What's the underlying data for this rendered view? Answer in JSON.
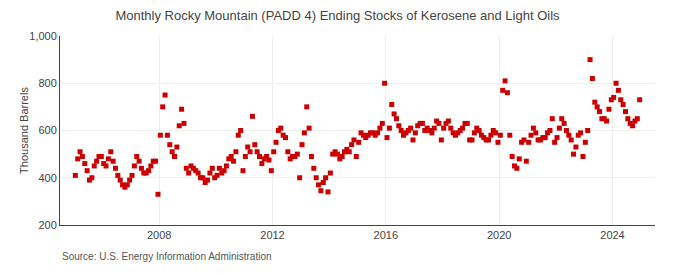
{
  "chart_data": {
    "type": "scatter",
    "title": "Monthly Rocky Mountain (PADD 4) Ending Stocks of Kerosene and Light Oils",
    "ylabel": "Thousand Barrels",
    "annotations": [
      "Source: U.S. Energy Information Administration"
    ],
    "color": "#cc0000",
    "marker": "square",
    "grid": true,
    "xlim": [
      2004.5,
      2025.5
    ],
    "xticks": [
      2008,
      2012,
      2016,
      2020,
      2024
    ],
    "ylim": [
      200,
      1000
    ],
    "yticks": [
      200,
      400,
      600,
      800,
      {
        "value": 1000,
        "label": "1,000"
      }
    ],
    "x": [
      2005.0416666666667,
      2005.125,
      2005.2083333333333,
      2005.2916666666667,
      2005.375,
      2005.4583333333333,
      2005.5416666666667,
      2005.625,
      2005.7083333333333,
      2005.7916666666667,
      2005.875,
      2005.9583333333333,
      2006.0416666666667,
      2006.125,
      2006.2083333333333,
      2006.2916666666667,
      2006.375,
      2006.4583333333333,
      2006.5416666666667,
      2006.625,
      2006.7083333333333,
      2006.7916666666667,
      2006.875,
      2006.9583333333333,
      2007.0416666666667,
      2007.125,
      2007.2083333333333,
      2007.2916666666667,
      2007.375,
      2007.4583333333333,
      2007.5416666666667,
      2007.625,
      2007.7083333333333,
      2007.7916666666667,
      2007.875,
      2007.9583333333333,
      2008.0416666666667,
      2008.125,
      2008.2083333333333,
      2008.2916666666667,
      2008.375,
      2008.4583333333333,
      2008.5416666666667,
      2008.625,
      2008.7083333333333,
      2008.7916666666667,
      2008.875,
      2008.9583333333333,
      2009.0416666666667,
      2009.125,
      2009.2083333333333,
      2009.2916666666667,
      2009.375,
      2009.4583333333333,
      2009.5416666666667,
      2009.625,
      2009.7083333333333,
      2009.7916666666667,
      2009.875,
      2009.9583333333333,
      2010.0416666666667,
      2010.125,
      2010.2083333333333,
      2010.2916666666667,
      2010.375,
      2010.4583333333333,
      2010.5416666666667,
      2010.625,
      2010.7083333333333,
      2010.7916666666667,
      2010.875,
      2010.9583333333333,
      2011.0416666666667,
      2011.125,
      2011.2083333333333,
      2011.2916666666667,
      2011.375,
      2011.4583333333333,
      2011.5416666666667,
      2011.625,
      2011.7083333333333,
      2011.7916666666667,
      2011.875,
      2011.9583333333333,
      2012.0416666666667,
      2012.125,
      2012.2083333333333,
      2012.2916666666667,
      2012.375,
      2012.4583333333333,
      2012.5416666666667,
      2012.625,
      2012.7083333333333,
      2012.7916666666667,
      2012.875,
      2012.9583333333333,
      2013.0416666666667,
      2013.125,
      2013.2083333333333,
      2013.2916666666667,
      2013.375,
      2013.4583333333333,
      2013.5416666666667,
      2013.625,
      2013.7083333333333,
      2013.7916666666667,
      2013.875,
      2013.9583333333333,
      2014.0416666666667,
      2014.125,
      2014.2083333333333,
      2014.2916666666667,
      2014.375,
      2014.4583333333333,
      2014.5416666666667,
      2014.625,
      2014.7083333333333,
      2014.7916666666667,
      2014.875,
      2014.9583333333333,
      2015.0416666666667,
      2015.125,
      2015.2083333333333,
      2015.2916666666667,
      2015.375,
      2015.4583333333333,
      2015.5416666666667,
      2015.625,
      2015.7083333333333,
      2015.7916666666667,
      2015.875,
      2015.9583333333333,
      2016.0416666666667,
      2016.125,
      2016.2083333333333,
      2016.2916666666667,
      2016.375,
      2016.4583333333333,
      2016.5416666666667,
      2016.625,
      2016.7083333333333,
      2016.7916666666667,
      2016.875,
      2016.9583333333333,
      2017.0416666666667,
      2017.125,
      2017.2083333333333,
      2017.2916666666667,
      2017.375,
      2017.4583333333333,
      2017.5416666666667,
      2017.625,
      2017.7083333333333,
      2017.7916666666667,
      2017.875,
      2017.9583333333333,
      2018.0416666666667,
      2018.125,
      2018.2083333333333,
      2018.2916666666667,
      2018.375,
      2018.4583333333333,
      2018.5416666666667,
      2018.625,
      2018.7083333333333,
      2018.7916666666667,
      2018.875,
      2018.9583333333333,
      2019.0416666666667,
      2019.125,
      2019.2083333333333,
      2019.2916666666667,
      2019.375,
      2019.4583333333333,
      2019.5416666666667,
      2019.625,
      2019.7083333333333,
      2019.7916666666667,
      2019.875,
      2019.9583333333333,
      2020.0416666666667,
      2020.125,
      2020.2083333333333,
      2020.2916666666667,
      2020.375,
      2020.4583333333333,
      2020.5416666666667,
      2020.625,
      2020.7083333333333,
      2020.7916666666667,
      2020.875,
      2020.9583333333333,
      2021.0416666666667,
      2021.125,
      2021.2083333333333,
      2021.2916666666667,
      2021.375,
      2021.4583333333333,
      2021.5416666666667,
      2021.625,
      2021.7083333333333,
      2021.7916666666667,
      2021.875,
      2021.9583333333333,
      2022.0416666666667,
      2022.125,
      2022.2083333333333,
      2022.2916666666667,
      2022.375,
      2022.4583333333333,
      2022.5416666666667,
      2022.625,
      2022.7083333333333,
      2022.7916666666667,
      2022.875,
      2022.9583333333333,
      2023.0416666666667,
      2023.125,
      2023.2083333333333,
      2023.2916666666667,
      2023.375,
      2023.4583333333333,
      2023.5416666666667,
      2023.625,
      2023.7083333333333,
      2023.7916666666667,
      2023.875,
      2023.9583333333333,
      2024.0416666666667,
      2024.125,
      2024.2083333333333,
      2024.2916666666667,
      2024.375,
      2024.4583333333333,
      2024.5416666666667,
      2024.625,
      2024.7083333333333,
      2024.7916666666667,
      2024.875,
      2024.9583333333333
    ],
    "values": [
      410,
      480,
      510,
      490,
      460,
      430,
      390,
      400,
      450,
      470,
      490,
      490,
      460,
      450,
      480,
      510,
      470,
      440,
      410,
      390,
      370,
      360,
      370,
      390,
      410,
      450,
      490,
      470,
      440,
      420,
      420,
      430,
      450,
      470,
      470,
      330,
      580,
      700,
      750,
      580,
      540,
      510,
      490,
      530,
      620,
      690,
      630,
      440,
      420,
      450,
      440,
      430,
      420,
      400,
      400,
      380,
      390,
      420,
      440,
      400,
      410,
      440,
      420,
      430,
      450,
      480,
      490,
      470,
      510,
      580,
      600,
      430,
      490,
      530,
      510,
      660,
      540,
      510,
      490,
      460,
      480,
      490,
      475,
      430,
      510,
      550,
      600,
      610,
      580,
      570,
      510,
      480,
      490,
      490,
      500,
      400,
      540,
      590,
      700,
      610,
      490,
      440,
      400,
      370,
      345,
      380,
      400,
      340,
      420,
      500,
      510,
      500,
      480,
      490,
      510,
      520,
      510,
      540,
      560,
      490,
      550,
      590,
      580,
      570,
      580,
      590,
      590,
      580,
      590,
      610,
      630,
      800,
      570,
      610,
      710,
      670,
      650,
      620,
      600,
      580,
      590,
      600,
      610,
      560,
      590,
      620,
      630,
      630,
      600,
      610,
      600,
      590,
      610,
      640,
      630,
      560,
      610,
      630,
      640,
      610,
      590,
      580,
      590,
      600,
      610,
      630,
      630,
      560,
      560,
      590,
      610,
      600,
      580,
      570,
      560,
      560,
      580,
      600,
      590,
      550,
      580,
      770,
      810,
      760,
      580,
      490,
      450,
      440,
      480,
      550,
      560,
      470,
      550,
      580,
      610,
      590,
      560,
      560,
      570,
      570,
      590,
      600,
      650,
      550,
      570,
      610,
      650,
      630,
      600,
      580,
      560,
      500,
      530,
      580,
      590,
      490,
      550,
      600,
      900,
      820,
      720,
      700,
      680,
      650,
      650,
      640,
      690,
      730,
      740,
      800,
      770,
      730,
      710,
      680,
      650,
      630,
      620,
      640,
      650,
      730
    ]
  }
}
